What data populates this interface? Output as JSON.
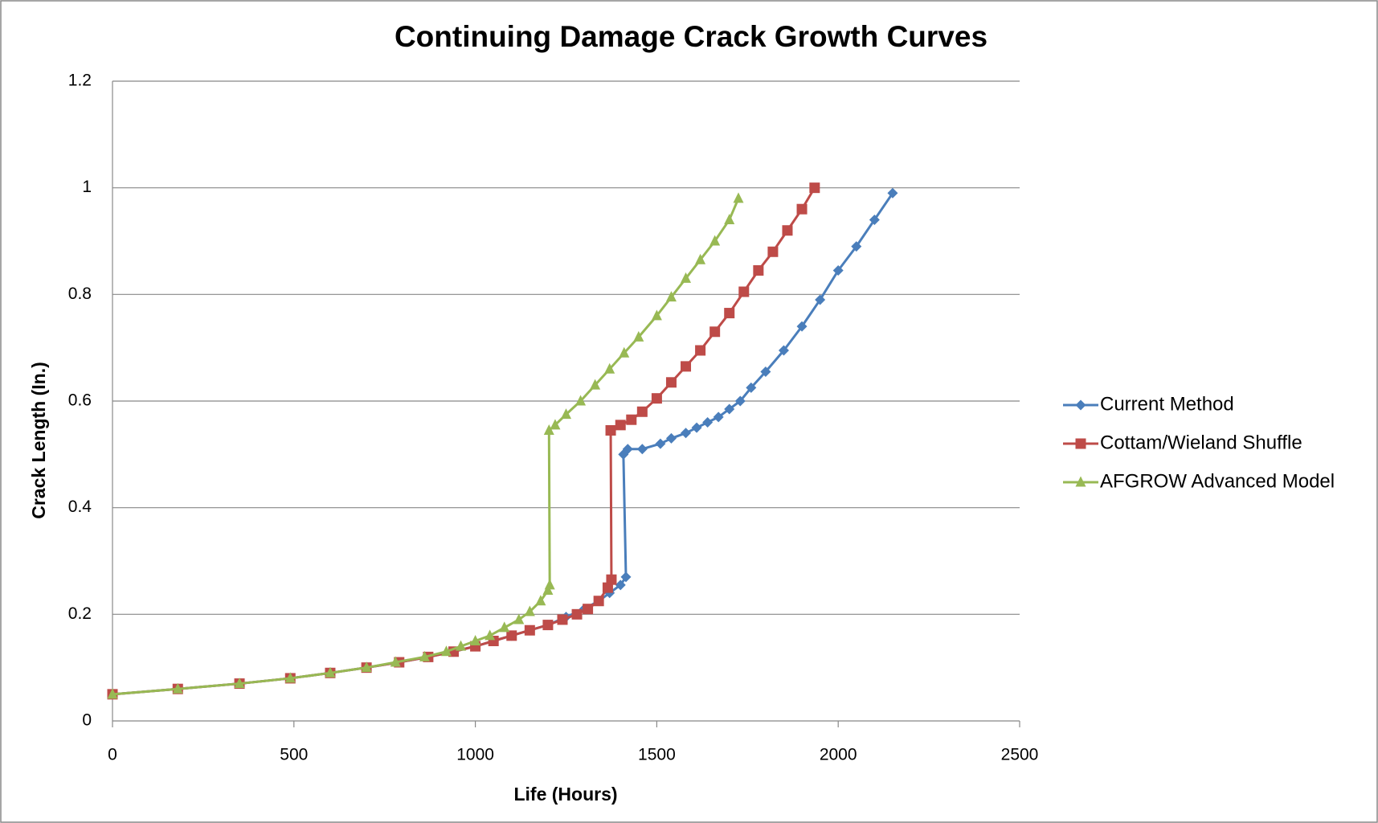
{
  "chart_data": {
    "type": "line",
    "title": "Continuing Damage Crack Growth Curves",
    "x_label": "Life (Hours)",
    "y_label": "Crack Length (In.)",
    "xlim": [
      0,
      2500
    ],
    "xticks": [
      0,
      500,
      1000,
      1500,
      2000,
      2500
    ],
    "ylim": [
      0,
      1.2
    ],
    "yticks": [
      0,
      0.2,
      0.4,
      0.6,
      0.8,
      1,
      1.2
    ],
    "grid": true,
    "legend": "right",
    "series": [
      {
        "name": "Current Method",
        "color": "#4a7ebb",
        "marker": "diamond",
        "x": [
          0,
          180,
          350,
          490,
          600,
          700,
          790,
          870,
          940,
          1000,
          1050,
          1100,
          1150,
          1200,
          1250,
          1300,
          1340,
          1370,
          1400,
          1415,
          1408,
          1420,
          1460,
          1510,
          1540,
          1580,
          1610,
          1640,
          1670,
          1700,
          1730,
          1760,
          1800,
          1850,
          1900,
          1950,
          2000,
          2050,
          2100,
          2150
        ],
        "values": [
          0.05,
          0.06,
          0.07,
          0.08,
          0.09,
          0.1,
          0.11,
          0.12,
          0.13,
          0.14,
          0.15,
          0.16,
          0.17,
          0.18,
          0.195,
          0.21,
          0.225,
          0.24,
          0.255,
          0.27,
          0.5,
          0.51,
          0.51,
          0.52,
          0.53,
          0.54,
          0.55,
          0.56,
          0.57,
          0.585,
          0.6,
          0.625,
          0.655,
          0.695,
          0.74,
          0.79,
          0.845,
          0.89,
          0.94,
          0.99
        ]
      },
      {
        "name": "Cottam/Wieland Shuffle",
        "color": "#be4b48",
        "marker": "square",
        "x": [
          0,
          180,
          350,
          490,
          600,
          700,
          790,
          870,
          940,
          1000,
          1050,
          1100,
          1150,
          1200,
          1240,
          1280,
          1310,
          1340,
          1365,
          1375,
          1373,
          1400,
          1430,
          1460,
          1500,
          1540,
          1580,
          1620,
          1660,
          1700,
          1740,
          1780,
          1820,
          1860,
          1900,
          1935
        ],
        "values": [
          0.05,
          0.06,
          0.07,
          0.08,
          0.09,
          0.1,
          0.11,
          0.12,
          0.13,
          0.14,
          0.15,
          0.16,
          0.17,
          0.18,
          0.19,
          0.2,
          0.21,
          0.225,
          0.25,
          0.265,
          0.545,
          0.555,
          0.565,
          0.58,
          0.605,
          0.635,
          0.665,
          0.695,
          0.73,
          0.765,
          0.805,
          0.845,
          0.88,
          0.92,
          0.96,
          1.0
        ]
      },
      {
        "name": "AFGROW Advanced Model",
        "color": "#98b954",
        "marker": "triangle",
        "x": [
          0,
          180,
          350,
          490,
          600,
          700,
          780,
          860,
          920,
          960,
          1000,
          1040,
          1080,
          1120,
          1150,
          1180,
          1200,
          1205,
          1203,
          1220,
          1250,
          1290,
          1330,
          1370,
          1410,
          1450,
          1500,
          1540,
          1580,
          1620,
          1660,
          1700,
          1725
        ],
        "values": [
          0.05,
          0.06,
          0.07,
          0.08,
          0.09,
          0.1,
          0.11,
          0.12,
          0.13,
          0.14,
          0.15,
          0.16,
          0.175,
          0.19,
          0.205,
          0.225,
          0.245,
          0.255,
          0.545,
          0.555,
          0.575,
          0.6,
          0.63,
          0.66,
          0.69,
          0.72,
          0.76,
          0.795,
          0.83,
          0.865,
          0.9,
          0.94,
          0.98
        ]
      }
    ]
  }
}
